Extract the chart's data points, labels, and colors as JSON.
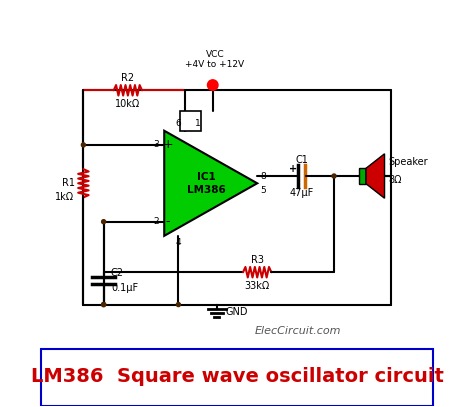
{
  "title": "LM386  Square wave oscillator circuit",
  "title_color": "#cc0000",
  "title_box_color": "#0000cc",
  "bg_color": "#ffffff",
  "wire_color": "#000000",
  "resistor_color": "#cc0000",
  "component_color": "#000000",
  "ic_fill_color": "#00cc00",
  "ic_text": "IC1\nLM386",
  "speaker_cone_color": "#cc0000",
  "speaker_neck_color": "#00aa00",
  "cap_color": "#cc6600",
  "dot_color": "#4d2600",
  "watermark": "ElecCircuit.com",
  "vcc_label": "VCC\n+4V to +12V",
  "gnd_label": "GND",
  "labels": {
    "R2": "R2",
    "R2_val": "10kΩ",
    "R1": "R1",
    "R1_val": "1kΩ",
    "R3": "R3",
    "R3_val": "33kΩ",
    "C1": "C1",
    "C1_val": "47μF",
    "C2": "C2",
    "C2_val": "0.1μF",
    "speaker_label": "Speaker",
    "speaker_val": "8Ω",
    "pin6": "6",
    "pin3": "3",
    "pin2": "2",
    "pin4": "4",
    "pin8": "8",
    "pin5": "5",
    "pin1": "1"
  }
}
